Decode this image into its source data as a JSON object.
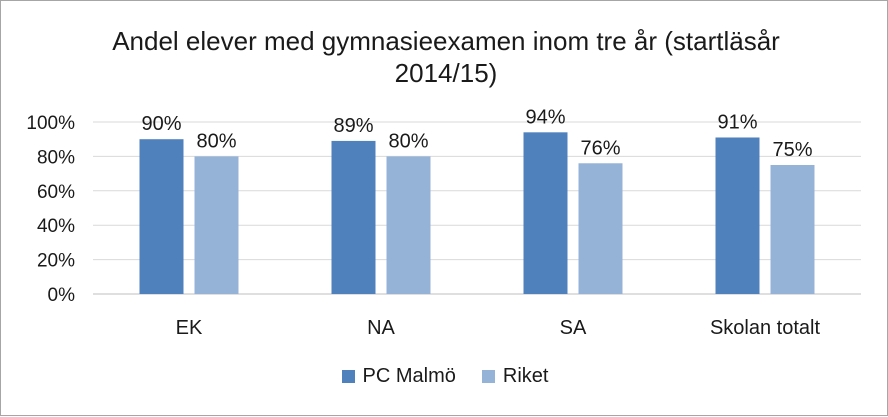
{
  "chart_data": {
    "type": "bar",
    "title": "Andel elever med gymnasieexamen inom tre år (startläsår 2014/15)",
    "categories": [
      "EK",
      "NA",
      "SA",
      "Skolan totalt"
    ],
    "series": [
      {
        "name": "PC Malmö",
        "values": [
          90,
          89,
          94,
          91
        ],
        "labels": [
          "90%",
          "89%",
          "94%",
          "91%"
        ],
        "color": "#4f81bd"
      },
      {
        "name": "Riket",
        "values": [
          80,
          80,
          76,
          75
        ],
        "labels": [
          "80%",
          "80%",
          "76%",
          "75%"
        ],
        "color": "#95b3d7"
      }
    ],
    "ylim": [
      0,
      100
    ],
    "yticks": [
      0,
      20,
      40,
      60,
      80,
      100
    ],
    "ytick_labels": [
      "0%",
      "20%",
      "40%",
      "60%",
      "80%",
      "100%"
    ],
    "grid": true,
    "legend_position": "bottom"
  }
}
